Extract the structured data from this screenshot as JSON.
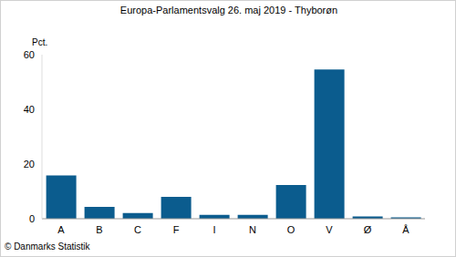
{
  "chart_data": {
    "type": "bar",
    "title": "Europa-Parlamentsvalg 26. maj 2019 - Thyborøn",
    "y_label": "Pct.",
    "source": "© Danmarks Statistik",
    "categories": [
      "A",
      "B",
      "C",
      "F",
      "I",
      "N",
      "O",
      "V",
      "Ø",
      "Å"
    ],
    "values": [
      15.8,
      4.3,
      2.1,
      8.0,
      1.4,
      1.4,
      12.3,
      54.6,
      0.8,
      0.5
    ],
    "color": "#0b5c8e",
    "ylim": [
      0,
      60
    ],
    "yticks": [
      0,
      20,
      40,
      60
    ],
    "grid": false
  }
}
